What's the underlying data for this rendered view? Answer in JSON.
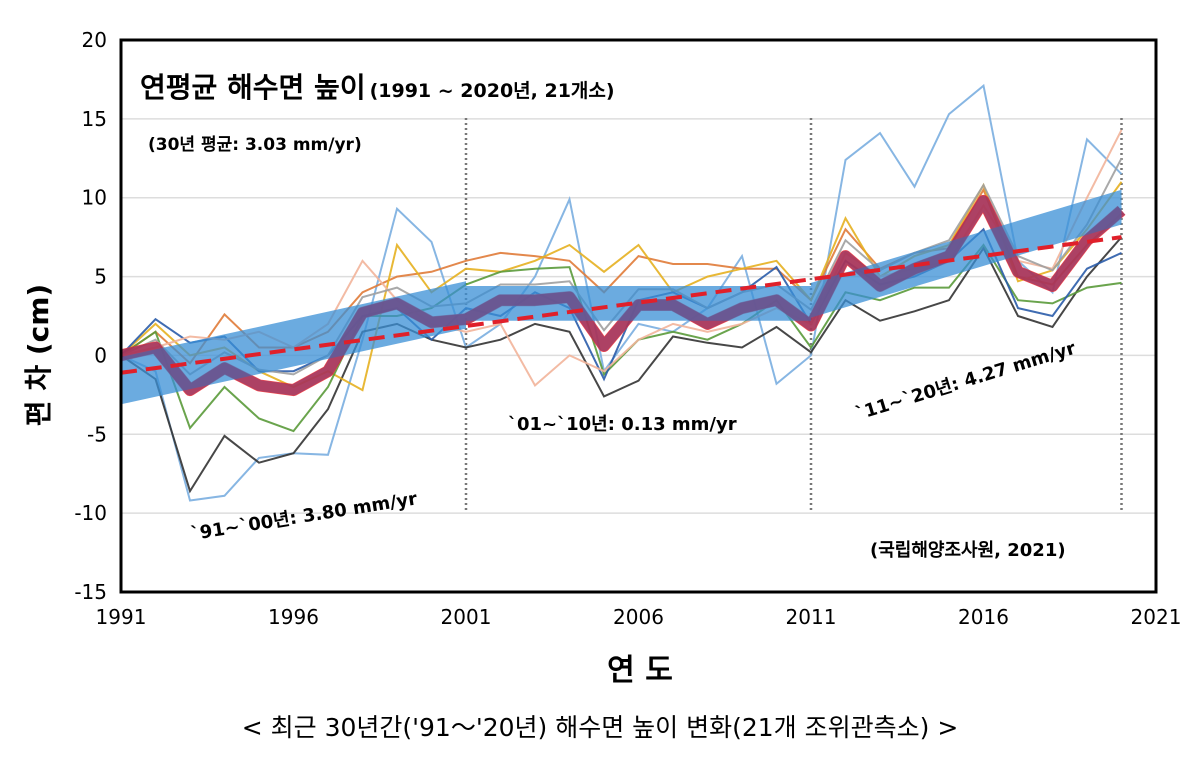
{
  "chart_data": {
    "type": "line",
    "title": "연평균 해수면 높이",
    "subtitle": "(1991 ~ 2020년, 21개소)",
    "xlabel": "연 도",
    "ylabel": "편 차 (cm)",
    "xlim": [
      1991,
      2021
    ],
    "ylim": [
      -15,
      20
    ],
    "x_ticks": [
      "1991",
      "1996",
      "2001",
      "2006",
      "2011",
      "2016",
      "2021"
    ],
    "y_ticks": [
      "20",
      "15",
      "10",
      "5",
      "0",
      "-5",
      "-10",
      "-15"
    ],
    "grid": true,
    "period_dividers": [
      2001,
      2011,
      2020
    ],
    "annotations": {
      "avg_rate": "(30년 평균: 3.03 mm/yr)",
      "period1": "`91~`00년: 3.80 mm/yr",
      "period2": "`01~`10년: 0.13 mm/yr",
      "period3": "`11~`20년: 4.27 mm/yr",
      "source": "(국립해양조사원, 2021)"
    },
    "x": [
      1991,
      1992,
      1993,
      1994,
      1995,
      1996,
      1997,
      1998,
      1999,
      2000,
      2001,
      2002,
      2003,
      2004,
      2005,
      2006,
      2007,
      2008,
      2009,
      2010,
      2011,
      2012,
      2013,
      2014,
      2015,
      2016,
      2017,
      2018,
      2019,
      2020
    ],
    "average": [
      0,
      0.5,
      -2.2,
      -0.8,
      -1.9,
      -2.2,
      -1.0,
      2.7,
      3.3,
      2.1,
      2.3,
      3.5,
      3.5,
      3.7,
      0.6,
      3.2,
      3.2,
      2.0,
      3.0,
      3.5,
      1.9,
      6.3,
      4.4,
      5.5,
      6.3,
      9.8,
      5.3,
      4.4,
      7.3,
      9.2
    ],
    "trend_30yr": {
      "start": [
        1991,
        -1.1
      ],
      "end": [
        2020,
        7.5
      ]
    },
    "period_trend_band": [
      {
        "from": 1991,
        "to": 2001,
        "start": -1.6,
        "end": 3.2,
        "halfwidth": 1.5
      },
      {
        "from": 2001,
        "to": 2011,
        "start": 3.3,
        "end": 3.3,
        "halfwidth": 1.1
      },
      {
        "from": 2011,
        "to": 2020,
        "start": 3.5,
        "end": 9.4,
        "halfwidth": 1.1
      }
    ],
    "stations": [
      {
        "color": "#7aaee0",
        "values": [
          0,
          -1,
          -9.2,
          -8.9,
          -6.5,
          -6.2,
          -6.3,
          1,
          9.3,
          7.2,
          0.5,
          2,
          5,
          9.9,
          -1,
          2,
          1.5,
          3,
          6.3,
          -1.8,
          0,
          12.4,
          14.1,
          10.7,
          15.3,
          17.1,
          6,
          4,
          13.7,
          11.5
        ]
      },
      {
        "color": "#333333",
        "values": [
          0,
          -1.5,
          -8.6,
          -5.1,
          -6.8,
          -6.2,
          -3.4,
          1.5,
          2.0,
          1,
          0.5,
          1.0,
          2.0,
          1.5,
          -2.6,
          -1.6,
          1.2,
          0.8,
          0.5,
          1.8,
          0.2,
          3.5,
          2.2,
          2.8,
          3.5,
          6.8,
          2.5,
          1.8,
          5,
          7.5
        ]
      },
      {
        "color": "#e07b39",
        "values": [
          0,
          1.5,
          -0.5,
          2.6,
          0.5,
          0.5,
          1.5,
          4,
          5,
          5.3,
          6,
          6.5,
          6.3,
          6.0,
          4.0,
          6.3,
          5.8,
          5.8,
          5.5,
          5.5,
          3.5,
          8,
          5.5,
          6.5,
          6.8,
          10.5,
          5,
          4.5,
          7,
          9
        ]
      },
      {
        "color": "#e6b020",
        "values": [
          0,
          2,
          0,
          0.5,
          -1,
          -2,
          -1,
          -2.2,
          7,
          4,
          5.5,
          5.3,
          6,
          7,
          5.3,
          7,
          4,
          5.0,
          5.5,
          6,
          3.5,
          8.7,
          5.0,
          6.3,
          7,
          10.8,
          4.7,
          5.4,
          8,
          11
        ]
      },
      {
        "color": "#5a9a3a",
        "values": [
          0,
          1.5,
          -4.6,
          -2,
          -4,
          -4.8,
          -2,
          2.5,
          2.5,
          3,
          4.5,
          5.3,
          5.5,
          5.6,
          -1.2,
          1,
          1.5,
          1,
          2,
          3.5,
          0.5,
          4,
          3.5,
          4.3,
          4.3,
          7,
          3.5,
          3.3,
          4.3,
          4.6
        ]
      },
      {
        "color": "#2a5caa",
        "values": [
          0,
          2.3,
          0.8,
          1.2,
          -1.0,
          -1.0,
          0,
          2.5,
          3,
          1,
          3,
          2.5,
          4.0,
          3,
          -1.5,
          3.5,
          4,
          3.0,
          4,
          5.6,
          2,
          6,
          4.5,
          5,
          6,
          8,
          3.0,
          2.5,
          5.5,
          6.5
        ]
      },
      {
        "color": "#f2b49a",
        "values": [
          0,
          0.5,
          1.2,
          1,
          1.5,
          0.5,
          2,
          6,
          3.5,
          2,
          1.5,
          2,
          -1.9,
          0,
          -1.0,
          1,
          2,
          1.5,
          2,
          3,
          2,
          6.5,
          5,
          5.5,
          6,
          9.5,
          6,
          5.5,
          10,
          14.3
        ]
      },
      {
        "color": "#a0a0a0",
        "values": [
          0,
          1,
          -1.2,
          0.2,
          -0.9,
          -1.2,
          0,
          3.7,
          4.3,
          3.1,
          3.3,
          4.5,
          4.5,
          4.7,
          1.6,
          4.2,
          4.2,
          3,
          4,
          4.5,
          2.9,
          7.3,
          5.4,
          6.5,
          7.3,
          10.8,
          6.3,
          5.4,
          8.3,
          12.5
        ]
      }
    ],
    "colors": {
      "average": "#ff2a2a",
      "average_overlay": "#6a3a7a",
      "trend": "#e0202a",
      "band": "#3a8fd6",
      "frame": "#000000",
      "grid": "#dddddd"
    }
  },
  "caption": "< 최근 30년간('91～'20년) 해수면 높이 변화(21개 조위관측소) >"
}
